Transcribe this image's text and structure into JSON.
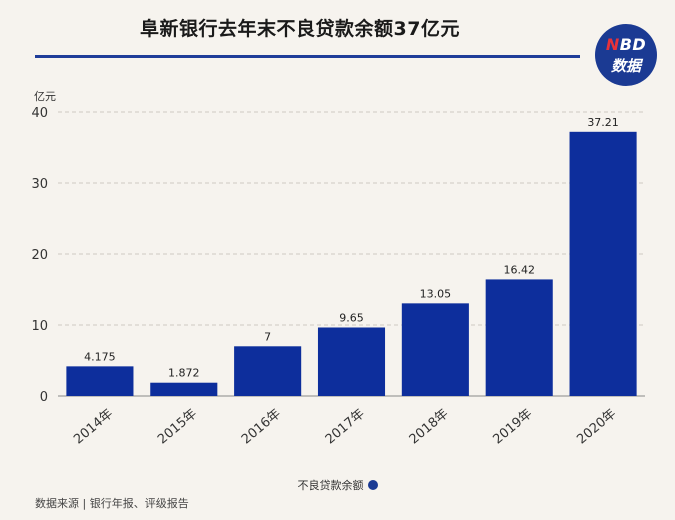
{
  "title": "阜新银行去年末不良贷款余额37亿元",
  "logo": {
    "top_n": "N",
    "top_rest": "BD",
    "bottom": "数据"
  },
  "source": "数据来源 | 银行年报、评级报告",
  "colors": {
    "bar": "#0d2e9c",
    "accent": "#1f3d99",
    "background": "#f6f3ee"
  },
  "chart_data": {
    "type": "bar",
    "unit_label": "亿元",
    "categories": [
      "2014年",
      "2015年",
      "2016年",
      "2017年",
      "2018年",
      "2019年",
      "2020年"
    ],
    "series": [
      {
        "name": "不良贷款余额",
        "values": [
          4.175,
          1.872,
          7,
          9.65,
          13.05,
          16.42,
          37.21
        ],
        "labels": [
          "4.175",
          "1.872",
          "7",
          "9.65",
          "13.05",
          "16.42",
          "37.21"
        ]
      }
    ],
    "ylim": [
      0,
      40
    ],
    "yticks": [
      0,
      10,
      20,
      30,
      40
    ],
    "grid": true,
    "legend_position": "bottom-center"
  }
}
